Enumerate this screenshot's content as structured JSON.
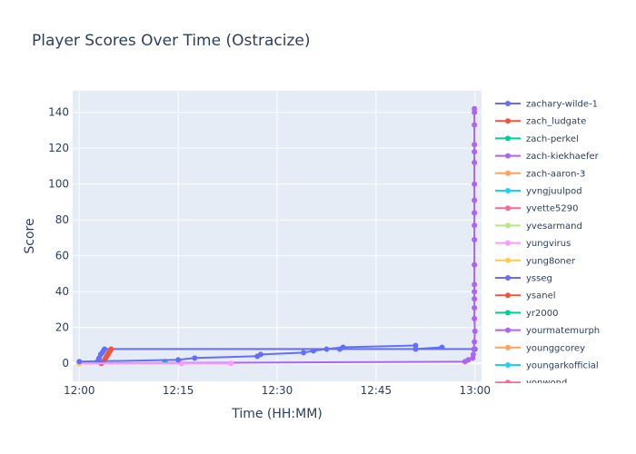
{
  "chart_data": {
    "type": "line",
    "title": "Player Scores Over Time (Ostracize)",
    "xlabel": "Time (HH:MM)",
    "ylabel": "Score",
    "x_ticks": [
      "12:00",
      "12:15",
      "12:30",
      "12:45",
      "13:00"
    ],
    "y_ticks": [
      0,
      20,
      40,
      60,
      80,
      100,
      120,
      140
    ],
    "xlim": [
      "11:59",
      "13:01"
    ],
    "ylim": [
      -10,
      152
    ],
    "grid": true,
    "legend_position": "right",
    "series": [
      {
        "name": "zachary-wilde-1",
        "color": "#636efa",
        "points": [
          [
            "12:02:45",
            1
          ],
          [
            "12:03:00",
            3
          ],
          [
            "12:03:15",
            5
          ],
          [
            "12:03:30",
            6
          ],
          [
            "12:03:40",
            7
          ],
          [
            "12:03:50",
            8
          ],
          [
            "12:39:30",
            8
          ],
          [
            "13:00:00",
            8
          ]
        ]
      },
      {
        "name": "zach_ludgate",
        "color": "#ef553b",
        "points": [
          [
            "12:03:20",
            0
          ],
          [
            "12:03:40",
            1
          ],
          [
            "12:03:50",
            2
          ],
          [
            "12:04:00",
            3
          ],
          [
            "12:04:10",
            4
          ],
          [
            "12:04:20",
            5
          ],
          [
            "12:04:30",
            6
          ],
          [
            "12:04:40",
            7
          ],
          [
            "12:04:50",
            8
          ]
        ]
      },
      {
        "name": "zach-perkel",
        "color": "#00cc96",
        "points": [
          [
            "12:13:00",
            1
          ],
          [
            "12:13:00",
            1
          ]
        ]
      },
      {
        "name": "zach-kiekhaefer",
        "color": "#ab63fa",
        "points": [
          [
            "12:00:00",
            0
          ],
          [
            "12:58:30",
            1
          ],
          [
            "12:59:00",
            2
          ],
          [
            "12:59:40",
            3
          ],
          [
            "12:59:45",
            5
          ],
          [
            "12:59:50",
            8
          ],
          [
            "12:59:55",
            12
          ],
          [
            "13:00:00",
            18
          ],
          [
            "12:59:55",
            25
          ],
          [
            "12:59:55",
            31
          ],
          [
            "12:59:55",
            36
          ],
          [
            "12:59:55",
            40
          ],
          [
            "12:59:55",
            44
          ],
          [
            "12:59:55",
            55
          ],
          [
            "12:59:55",
            69
          ],
          [
            "12:59:55",
            77
          ],
          [
            "12:59:55",
            84
          ],
          [
            "12:59:55",
            91
          ],
          [
            "12:59:55",
            100
          ],
          [
            "12:59:55",
            112
          ],
          [
            "12:59:55",
            118
          ],
          [
            "12:59:55",
            122
          ],
          [
            "12:59:55",
            133
          ],
          [
            "12:59:55",
            140
          ],
          [
            "12:59:55",
            142
          ]
        ]
      },
      {
        "name": "zach-aaron-3",
        "color": "#ffa15a",
        "points": [
          [
            "12:00:00",
            0
          ],
          [
            "12:00:00",
            0
          ]
        ]
      },
      {
        "name": "yvngjuulpod",
        "color": "#19d3f3",
        "points": []
      },
      {
        "name": "yvette5290",
        "color": "#ff6692",
        "points": []
      },
      {
        "name": "yvesarmand",
        "color": "#b6e880",
        "points": []
      },
      {
        "name": "yungvirus",
        "color": "#ff97ff",
        "points": [
          [
            "12:00:00",
            0
          ],
          [
            "12:15:30",
            0
          ],
          [
            "12:23:00",
            0
          ]
        ]
      },
      {
        "name": "yung8oner",
        "color": "#fecb52",
        "points": [
          [
            "12:00:00",
            0
          ],
          [
            "12:00:00",
            0
          ]
        ]
      },
      {
        "name": "ysseg",
        "color": "#636efa",
        "points": [
          [
            "12:00:00",
            1
          ],
          [
            "12:15:00",
            2
          ],
          [
            "12:17:30",
            3
          ],
          [
            "12:27:00",
            4
          ],
          [
            "12:27:30",
            5
          ],
          [
            "12:34:00",
            6
          ],
          [
            "12:35:30",
            7
          ],
          [
            "12:37:30",
            8
          ],
          [
            "12:40:00",
            9
          ],
          [
            "12:51:00",
            10
          ],
          [
            "12:51:00",
            8
          ],
          [
            "12:55:00",
            9
          ]
        ]
      },
      {
        "name": "ysanel",
        "color": "#ef553b",
        "points": []
      },
      {
        "name": "yr2000",
        "color": "#00cc96",
        "points": []
      },
      {
        "name": "yourmatemurph",
        "color": "#ab63fa",
        "points": []
      },
      {
        "name": "younggcorey",
        "color": "#ffa15a",
        "points": []
      },
      {
        "name": "youngarkofficial",
        "color": "#19d3f3",
        "points": []
      },
      {
        "name": "yonwond",
        "color": "#ff6692",
        "points": []
      }
    ]
  }
}
